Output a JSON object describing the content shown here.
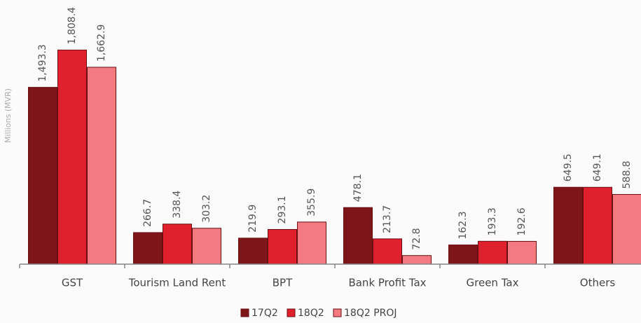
{
  "chart_data": {
    "type": "bar",
    "ylabel": "Millions (MVR)",
    "categories": [
      "GST",
      "Tourism Land Rent",
      "BPT",
      "Bank Profit Tax",
      "Green Tax",
      "Others"
    ],
    "series": [
      {
        "name": "17Q2",
        "color": "#7e1518",
        "values": [
          1493.3,
          266.7,
          219.9,
          478.1,
          162.3,
          649.5
        ],
        "value_labels": [
          "1,493.3",
          "266.7",
          "219.9",
          "478.1",
          "162.3",
          "649.5"
        ]
      },
      {
        "name": "18Q2",
        "color": "#e0202c",
        "values": [
          1808.4,
          338.4,
          293.1,
          213.7,
          193.3,
          649.1
        ],
        "value_labels": [
          "1,808.4",
          "338.4",
          "293.1",
          "213.7",
          "193.3",
          "649.1"
        ]
      },
      {
        "name": "18Q2 PROJ",
        "color": "#f27a80",
        "values": [
          1662.9,
          303.2,
          355.9,
          72.8,
          192.6,
          588.8
        ],
        "value_labels": [
          "1,662.9",
          "303.2",
          "355.9",
          "72.8",
          "192.6",
          "588.8"
        ]
      }
    ],
    "ylim": [
      0,
      2000
    ],
    "legend": "bottom"
  }
}
